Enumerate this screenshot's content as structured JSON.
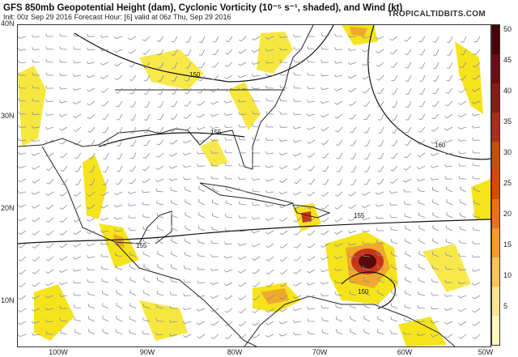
{
  "header": {
    "title": "GFS 850mb Geopotential Height (dam), Cyclonic Vorticity (10⁻⁵ s⁻¹, shaded), and Wind (kt)",
    "subtitle": "Init: 00z Sep 29 2016   Forecast Hour: [6]   valid at 06z Thu, Sep 29 2016",
    "brand": "TROPICALTIDBITS.COM"
  },
  "map": {
    "lat_labels": [
      "40N",
      "30N",
      "20N",
      "10N"
    ],
    "lon_labels": [
      "100W",
      "90W",
      "80W",
      "70W",
      "60W",
      "50W"
    ],
    "contour_labels": [
      "150",
      "155",
      "160",
      "155",
      "155",
      "150"
    ],
    "colors": {
      "land_outline": "#222222",
      "vorticity_low": "#f5e31c",
      "vorticity_mid": "#f0a92a",
      "vorticity_high": "#c8361a",
      "vorticity_max": "#5a0a0a",
      "wind_barb": "#8a8aa6"
    },
    "features": [
      "hurricane-matthew-vortex",
      "wind-barbs",
      "height-contours",
      "coastlines"
    ]
  },
  "colorbar": {
    "ticks": [
      "50",
      "45",
      "40",
      "35",
      "30",
      "25",
      "20",
      "15",
      "10",
      "5"
    ],
    "range": [
      0,
      52
    ],
    "colors": [
      "#fff7bc",
      "#fee391",
      "#fec44f",
      "#fe9929",
      "#ec7014",
      "#d94801",
      "#cc4c02",
      "#b22a1c",
      "#8c1a14",
      "#6d0b12",
      "#4a0208"
    ]
  }
}
